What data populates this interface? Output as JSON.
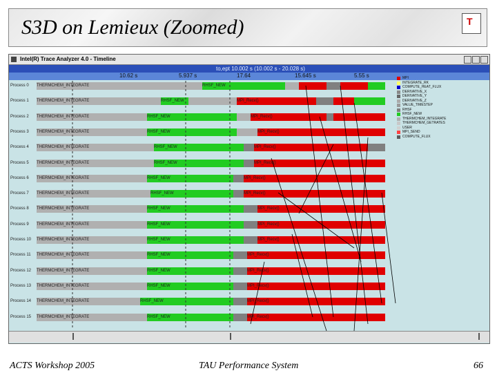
{
  "slide": {
    "title": "S3D on Lemieux (Zoomed)",
    "footer_left": "ACTS Workshop 2005",
    "footer_center": "TAU Performance System",
    "page_number": "66"
  },
  "window": {
    "title": "Intel(R) Trace Analyzer 4.0 - Timeline",
    "range_text": "to,ept 10.002 s (10.002 s - 20.028 s)",
    "ticks": [
      "10.62 s",
      "5.937 s",
      "17.64",
      "15.645 s",
      "5.55 s"
    ]
  },
  "processes": [
    "Process 0",
    "Process 1",
    "Process 2",
    "Process 3",
    "Process 4",
    "Process 5",
    "Process 6",
    "Process 7",
    "Process 8",
    "Process 9",
    "Process 10",
    "Process 11",
    "Process 12",
    "Process 13",
    "Process 14",
    "Process 15"
  ],
  "segment_texts": {
    "therm": "THERMCHEM_INTEGRATE",
    "recv": "MPI_Recv()",
    "wait": "MPI_Wait",
    "rhsf": "RHSF_NEW",
    "comm": "94"
  },
  "legend": [
    {
      "label": "MPI",
      "color": "#e00000"
    },
    {
      "label": "INTEGRATE_RK",
      "color": "#ffff66"
    },
    {
      "label": "COMPUTE_HEAT_FLUX",
      "color": "#0000cc"
    },
    {
      "label": "DERIVATIVE_X",
      "color": "#888888"
    },
    {
      "label": "DERIVATIVE_Y",
      "color": "#666666"
    },
    {
      "label": "DERIVATIVE_Z",
      "color": "#aaaaaa"
    },
    {
      "label": "VALUE_TIMESTEP",
      "color": "#999999"
    },
    {
      "label": "RHSF",
      "color": "#808080"
    },
    {
      "label": "RHSF_NEW",
      "color": "#22cc22"
    },
    {
      "label": "THERMCHEM_INTEGRATE",
      "color": "#b0b0b0"
    },
    {
      "label": "THERMCHEM_GETRATES",
      "color": "#c8c8c8"
    },
    {
      "label": "USER",
      "color": "#d0d0d0"
    },
    {
      "label": "MPI_SEND",
      "color": "#ff4040"
    },
    {
      "label": "COMPUTE_FLUX",
      "color": "#5a5a5a"
    }
  ]
}
